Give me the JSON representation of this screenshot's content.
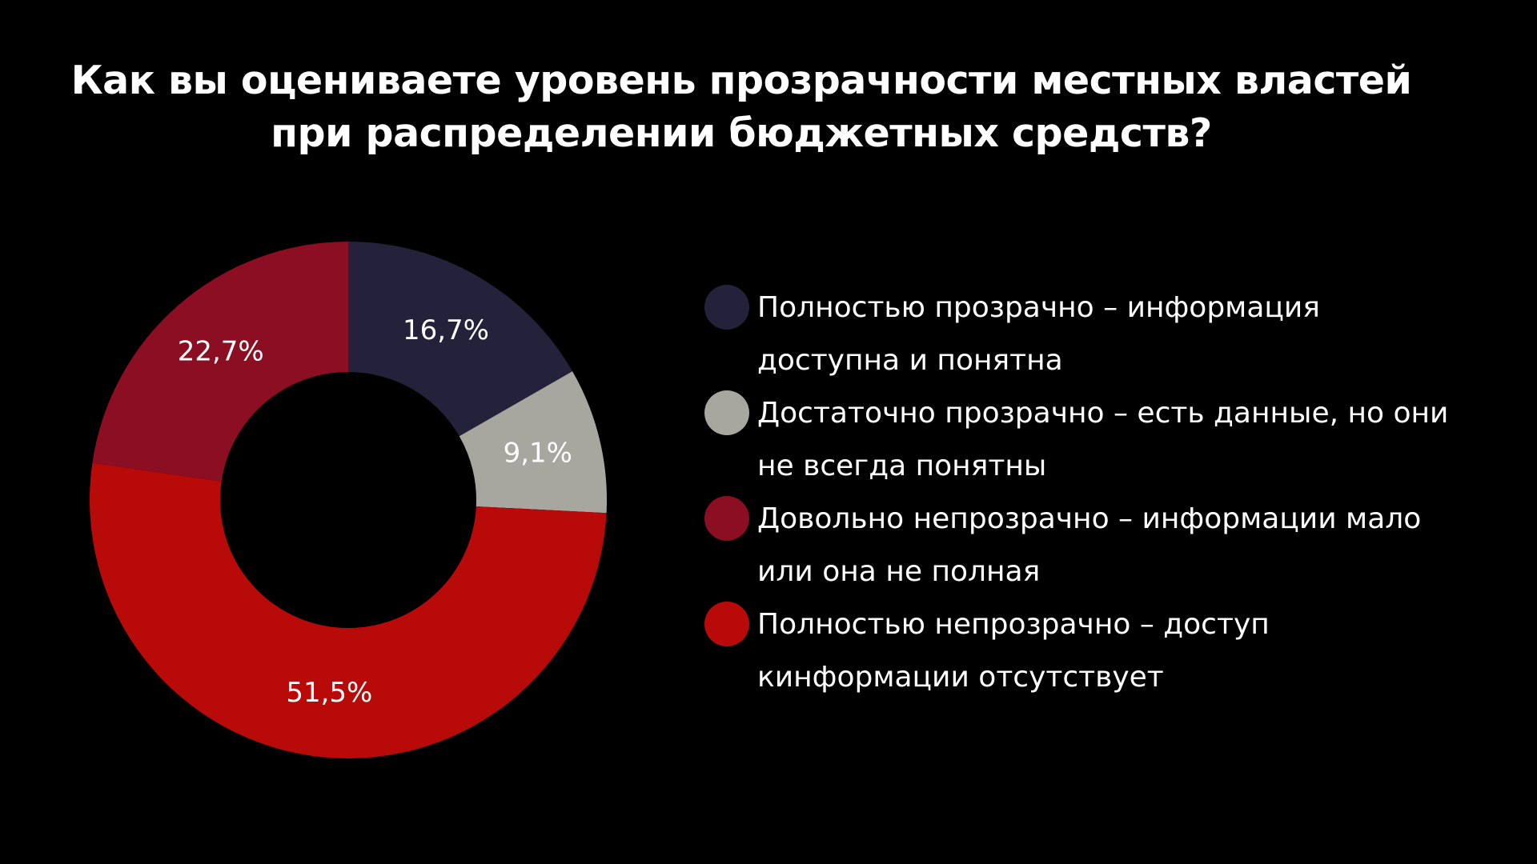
{
  "chart_data": {
    "type": "pie",
    "title": "Как вы оцениваете уровень прозрачности местных властей при распределении бюджетных средств?",
    "title_lines": [
      "Как вы оцениваете уровень прозрачности местных властей",
      "при распределении бюджетных средств?"
    ],
    "donut": true,
    "legend_position": "right",
    "slices": [
      {
        "name": "Полностью прозрачно – информация доступна и понятна",
        "value": 16.7,
        "label": "16,7%",
        "color": "#23223a"
      },
      {
        "name": "Достаточно прозрачно – есть данные, но они не всегда понятны",
        "value": 9.1,
        "label": "9,1%",
        "color": "#a7a7a0"
      },
      {
        "name": "Полностью непрозрачно – доступ кинформации отсутствует",
        "value": 51.5,
        "label": "51,5%",
        "color": "#b90a0a"
      },
      {
        "name": "Довольно непрозрачно – информации мало или она не полная",
        "value": 22.7,
        "label": "22,7%",
        "color": "#8c0e22"
      }
    ],
    "legend": [
      {
        "lines": [
          "Полностью прозрачно – информация",
          "доступна и понятна"
        ],
        "color": "#23223a"
      },
      {
        "lines": [
          "Достаточно прозрачно – есть данные, но они",
          "не всегда понятны"
        ],
        "color": "#a7a7a0"
      },
      {
        "lines": [
          "Довольно непрозрачно – информации мало",
          "или она не полная"
        ],
        "color": "#8c0e22"
      },
      {
        "lines": [
          "Полностью непрозрачно – доступ",
          "кинформации отсутствует"
        ],
        "color": "#b90a0a"
      }
    ]
  }
}
